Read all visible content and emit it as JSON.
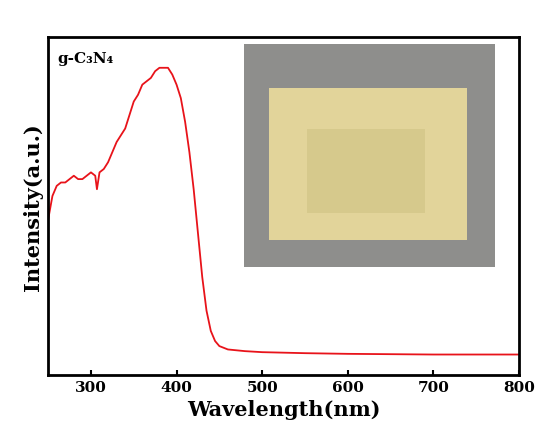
{
  "chart_data": {
    "type": "line",
    "annotation": "g-C₃N₄",
    "x_label": "Wavelength(nm)",
    "y_label": "Intensity(a.u.)",
    "x": [
      250,
      255,
      260,
      265,
      270,
      275,
      280,
      285,
      290,
      295,
      300,
      305,
      307,
      310,
      315,
      320,
      325,
      330,
      335,
      340,
      345,
      350,
      355,
      360,
      365,
      370,
      375,
      380,
      385,
      390,
      395,
      400,
      405,
      410,
      415,
      420,
      425,
      430,
      435,
      440,
      445,
      450,
      460,
      480,
      500,
      550,
      600,
      650,
      700,
      750,
      800
    ],
    "values": [
      0.46,
      0.53,
      0.56,
      0.57,
      0.57,
      0.58,
      0.59,
      0.58,
      0.58,
      0.59,
      0.6,
      0.59,
      0.55,
      0.6,
      0.61,
      0.63,
      0.66,
      0.69,
      0.71,
      0.73,
      0.77,
      0.81,
      0.83,
      0.86,
      0.87,
      0.88,
      0.9,
      0.91,
      0.91,
      0.91,
      0.89,
      0.86,
      0.82,
      0.75,
      0.66,
      0.55,
      0.42,
      0.29,
      0.19,
      0.13,
      0.1,
      0.085,
      0.075,
      0.07,
      0.067,
      0.064,
      0.062,
      0.061,
      0.06,
      0.06,
      0.06
    ],
    "color": "#e8131a",
    "xlim": [
      250,
      800
    ],
    "xticks": [
      300,
      400,
      500,
      600,
      700,
      800
    ],
    "ylim": [
      0,
      1
    ],
    "tick_labels": "x"
  }
}
